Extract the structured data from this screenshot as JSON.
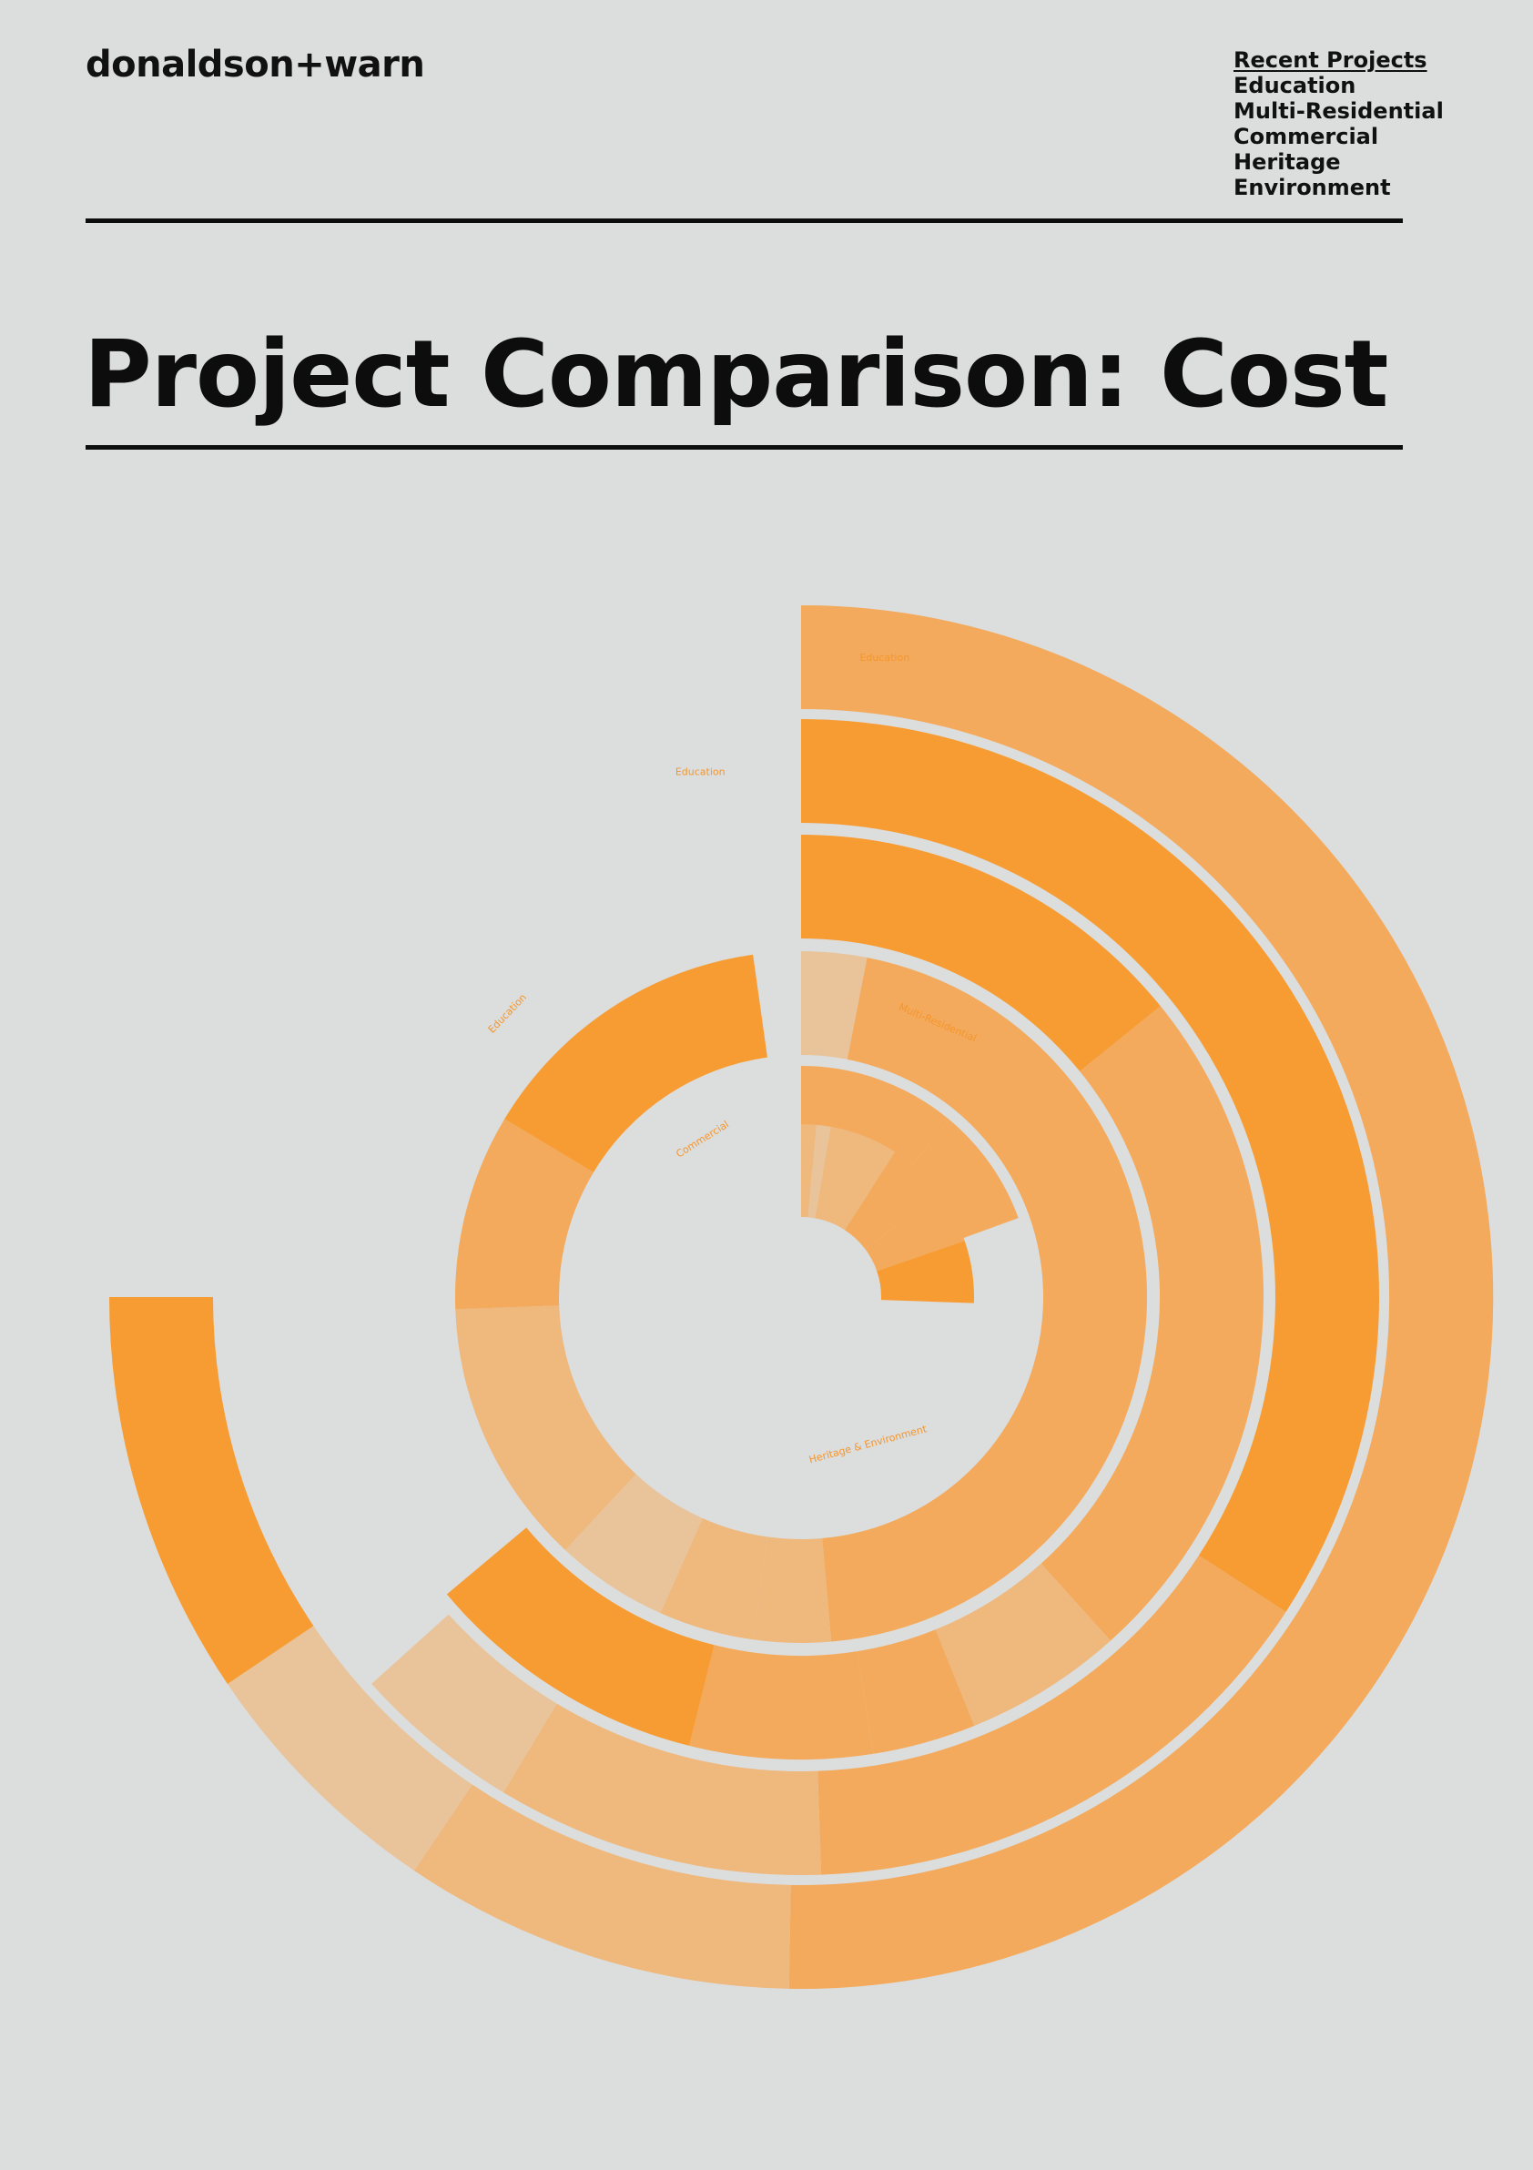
{
  "header": {
    "logo": "donaldson+warn",
    "nav": [
      {
        "label": "Recent Projects",
        "active": true
      },
      {
        "label": "Education",
        "active": false
      },
      {
        "label": "Multi-Residential",
        "active": false
      },
      {
        "label": "Commercial",
        "active": false
      },
      {
        "label": "Heritage",
        "active": false
      },
      {
        "label": "Environment",
        "active": false
      }
    ]
  },
  "page": {
    "title": "Project Comparison: Cost"
  },
  "colors": {
    "background": "#dcdddd",
    "text": "#111111",
    "shade_1": "#f79c33",
    "shade_2": "#f3aa5c",
    "shade_3": "#efb87d",
    "shade_4": "#e9c49a",
    "label": "#f5962d"
  },
  "chart_data": {
    "type": "radial_bar",
    "start_angle_deg": 0,
    "rings": [
      {
        "label": "Education",
        "label_angle_deg": 6,
        "segments": [
          {
            "sweep_deg": 181,
            "shade": "shade_2"
          },
          {
            "sweep_deg": 33,
            "shade": "shade_3"
          },
          {
            "sweep_deg": 22,
            "shade": "shade_4"
          },
          {
            "sweep_deg": 34,
            "shade": "shade_1"
          }
        ]
      },
      {
        "label": "Education",
        "label_angle_deg": -7,
        "segments": [
          {
            "sweep_deg": 123,
            "shade": "shade_1"
          },
          {
            "sweep_deg": 55,
            "shade": "shade_2"
          },
          {
            "sweep_deg": 33,
            "shade": "shade_3"
          },
          {
            "sweep_deg": 17,
            "shade": "shade_4"
          }
        ]
      },
      {
        "label": "Education",
        "label_angle_deg": -46,
        "segments": [
          {
            "sweep_deg": 51,
            "shade": "shade_1"
          },
          {
            "sweep_deg": 87,
            "shade": "shade_2"
          },
          {
            "sweep_deg": 7,
            "shade": "shade_3"
          },
          {
            "sweep_deg": 13,
            "shade": "shade_3"
          },
          {
            "sweep_deg": 13,
            "shade": "shade_2"
          },
          {
            "sweep_deg": 23,
            "shade": "shade_2"
          },
          {
            "sweep_deg": 36,
            "shade": "shade_1"
          }
        ]
      },
      {
        "label": "Multi-Residential",
        "label_angle_deg": 23,
        "segments": [
          {
            "sweep_deg": 11,
            "shade": "shade_4"
          },
          {
            "sweep_deg": 164,
            "shade": "shade_2"
          },
          {
            "sweep_deg": 13,
            "shade": "shade_3"
          },
          {
            "sweep_deg": 16,
            "shade": "shade_3"
          },
          {
            "sweep_deg": 19,
            "shade": "shade_4"
          },
          {
            "sweep_deg": 45,
            "shade": "shade_3"
          },
          {
            "sweep_deg": 33,
            "shade": "shade_2"
          },
          {
            "sweep_deg": 51,
            "shade": "shade_1"
          }
        ]
      },
      {
        "label": "Commercial",
        "label_angle_deg": -32,
        "segments": [
          {
            "sweep_deg": 40,
            "shade": "shade_2"
          },
          {
            "sweep_deg": 30,
            "shade": "shade_2"
          }
        ]
      },
      {
        "label": "Heritage & Environment",
        "label_angle_deg": 165,
        "segments": [
          {
            "sweep_deg": 5,
            "shade": "shade_3"
          },
          {
            "sweep_deg": 5,
            "shade": "shade_4"
          },
          {
            "sweep_deg": 23,
            "shade": "shade_3"
          },
          {
            "sweep_deg": 20,
            "shade": "shade_2"
          },
          {
            "sweep_deg": 18,
            "shade": "shade_2"
          },
          {
            "sweep_deg": 21,
            "shade": "shade_1"
          }
        ]
      }
    ]
  }
}
